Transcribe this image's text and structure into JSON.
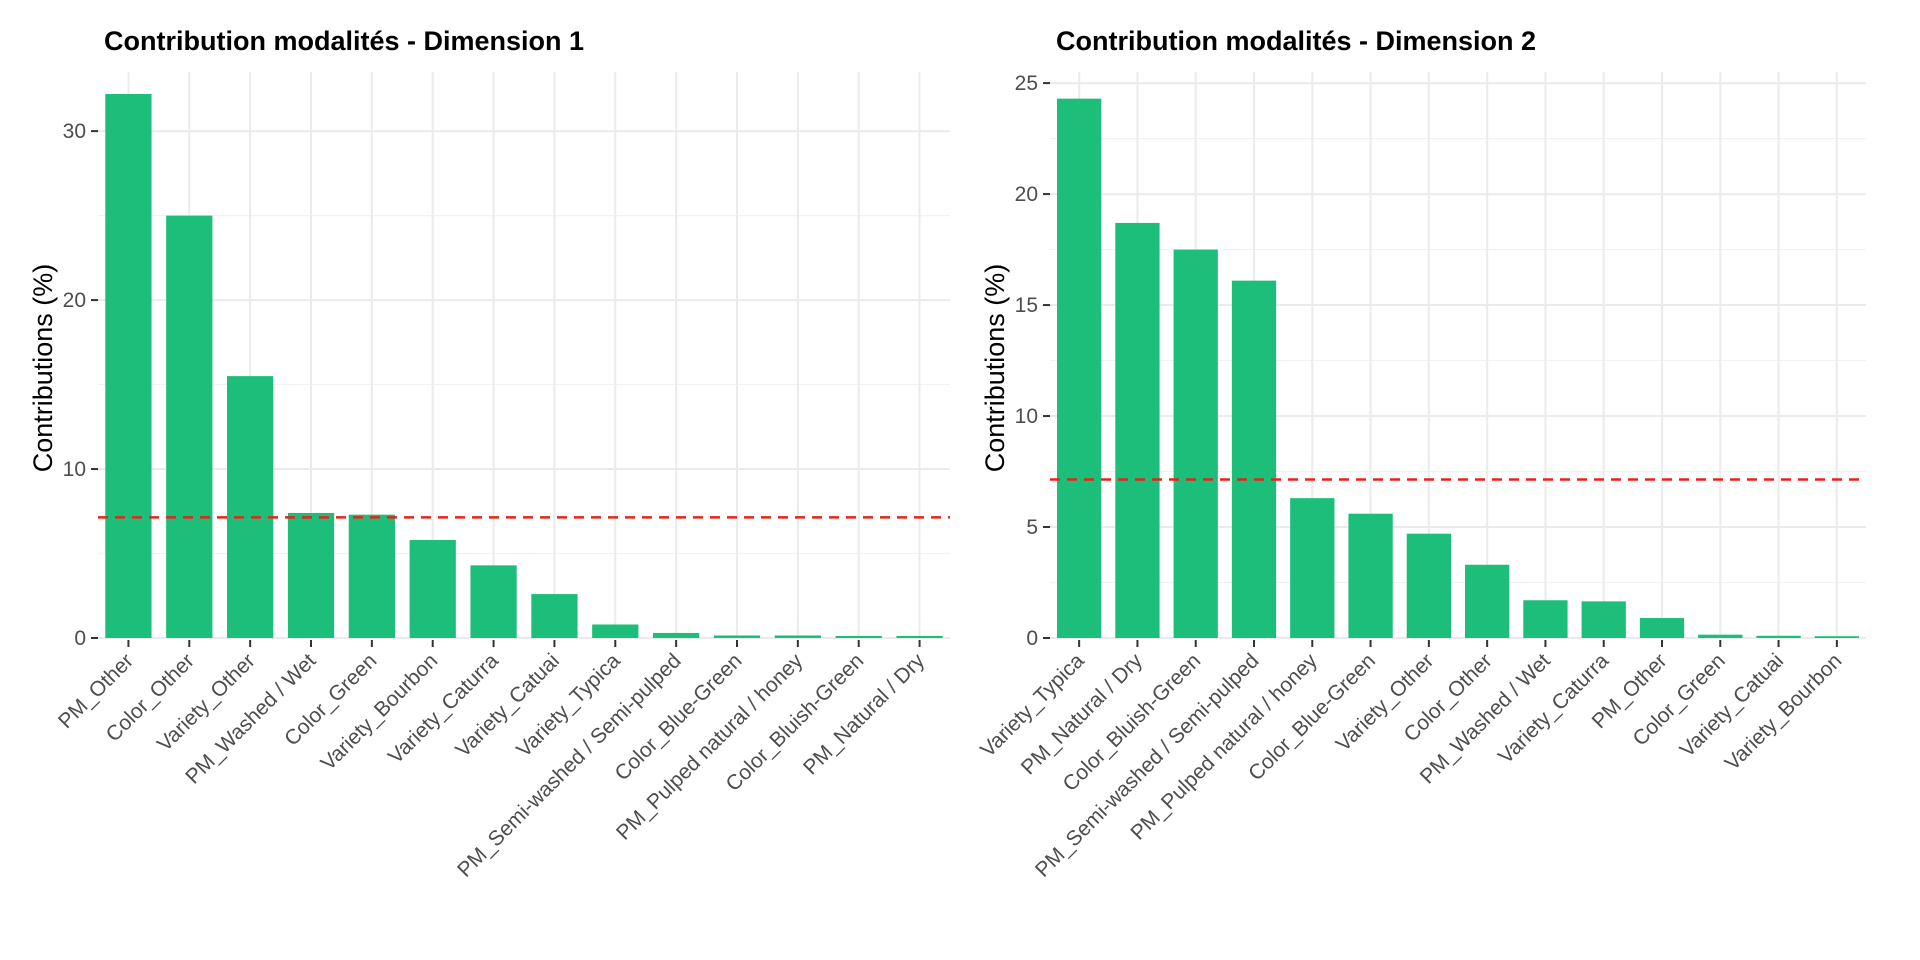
{
  "colors": {
    "bar": "#1cbe7a",
    "reference_line": "#e8241a"
  },
  "chart_data": [
    {
      "type": "bar",
      "title": "Contribution modalités - Dimension 1",
      "xlabel": "",
      "ylabel": "Contributions (%)",
      "categories": [
        "PM_Other",
        "Color_Other",
        "Variety_Other",
        "PM_Washed / Wet",
        "Color_Green",
        "Variety_Bourbon",
        "Variety_Caturra",
        "Variety_Catuai",
        "Variety_Typica",
        "PM_Semi-washed / Semi-pulped",
        "Color_Blue-Green",
        "PM_Pulped natural / honey",
        "Color_Bluish-Green",
        "PM_Natural / Dry"
      ],
      "values": [
        32.2,
        25.0,
        15.5,
        7.4,
        7.3,
        5.8,
        4.3,
        2.6,
        0.8,
        0.3,
        0.15,
        0.15,
        0.12,
        0.12
      ],
      "reference_line": 7.14,
      "ylim": [
        0,
        33.5
      ],
      "yticks": [
        0,
        10,
        20,
        30
      ],
      "grid": true
    },
    {
      "type": "bar",
      "title": "Contribution modalités - Dimension 2",
      "xlabel": "",
      "ylabel": "Contributions (%)",
      "categories": [
        "Variety_Typica",
        "PM_Natural / Dry",
        "Color_Bluish-Green",
        "PM_Semi-washed / Semi-pulped",
        "PM_Pulped natural / honey",
        "Color_Blue-Green",
        "Variety_Other",
        "Color_Other",
        "PM_Washed / Wet",
        "Variety_Caturra",
        "PM_Other",
        "Color_Green",
        "Variety_Catuai",
        "Variety_Bourbon"
      ],
      "values": [
        24.3,
        18.7,
        17.5,
        16.1,
        6.3,
        5.6,
        4.7,
        3.3,
        1.7,
        1.65,
        0.9,
        0.15,
        0.1,
        0.08
      ],
      "reference_line": 7.14,
      "ylim": [
        0,
        25.5
      ],
      "yticks": [
        0,
        5,
        10,
        15,
        20,
        25
      ],
      "grid": true
    }
  ]
}
